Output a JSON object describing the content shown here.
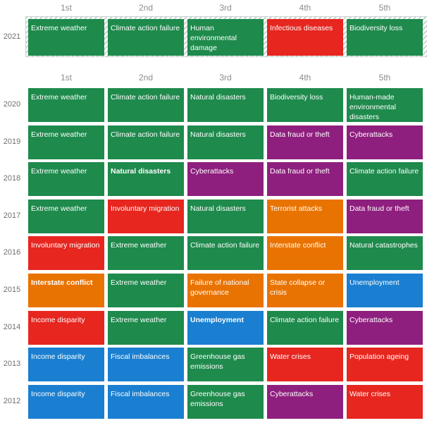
{
  "ranks": [
    "1st",
    "2nd",
    "3rd",
    "4th",
    "5th"
  ],
  "colors": {
    "green": "#1e8a4c",
    "red": "#e6261f",
    "purple": "#8e1f7e",
    "orange": "#e97300",
    "blue": "#1a7fd0"
  },
  "year2021": {
    "year": "2021",
    "cells": [
      {
        "label": "Extreme weather",
        "color": "green"
      },
      {
        "label": "Climate action failure",
        "color": "green"
      },
      {
        "label": "Human environmental damage",
        "color": "green"
      },
      {
        "label": "Infectious diseases",
        "color": "red"
      },
      {
        "label": "Biodiversity loss",
        "color": "green"
      }
    ]
  },
  "rows": [
    {
      "year": "2020",
      "cells": [
        {
          "label": "Extreme weather",
          "color": "green"
        },
        {
          "label": "Climate action failure",
          "color": "green"
        },
        {
          "label": "Natural disasters",
          "color": "green"
        },
        {
          "label": "Biodiversity loss",
          "color": "green"
        },
        {
          "label": "Human-made environmental disasters",
          "color": "green"
        }
      ]
    },
    {
      "year": "2019",
      "cells": [
        {
          "label": "Extreme weather",
          "color": "green"
        },
        {
          "label": "Climate action failure",
          "color": "green"
        },
        {
          "label": "Natural disasters",
          "color": "green"
        },
        {
          "label": "Data fraud or theft",
          "color": "purple"
        },
        {
          "label": "Cyberattacks",
          "color": "purple"
        }
      ]
    },
    {
      "year": "2018",
      "cells": [
        {
          "label": "Extreme weather",
          "color": "green"
        },
        {
          "label": "Natural disasters",
          "color": "green",
          "bold": true
        },
        {
          "label": "Cyberattacks",
          "color": "purple"
        },
        {
          "label": "Data fraud or theft",
          "color": "purple"
        },
        {
          "label": "Climate action failure",
          "color": "green"
        }
      ]
    },
    {
      "year": "2017",
      "cells": [
        {
          "label": "Extreme weather",
          "color": "green"
        },
        {
          "label": "Involuntary migration",
          "color": "red"
        },
        {
          "label": "Natural disasters",
          "color": "green"
        },
        {
          "label": "Terrorist attacks",
          "color": "orange"
        },
        {
          "label": "Data fraud or theft",
          "color": "purple"
        }
      ]
    },
    {
      "year": "2016",
      "cells": [
        {
          "label": "Involuntary migration",
          "color": "red"
        },
        {
          "label": "Extreme weather",
          "color": "green"
        },
        {
          "label": "Climate action failure",
          "color": "green"
        },
        {
          "label": "Interstate conflict",
          "color": "orange"
        },
        {
          "label": "Natural catastrophes",
          "color": "green"
        }
      ]
    },
    {
      "year": "2015",
      "cells": [
        {
          "label": "Interstate conflict",
          "color": "orange",
          "bold": true
        },
        {
          "label": "Extreme weather",
          "color": "green"
        },
        {
          "label": "Failure of national governance",
          "color": "orange"
        },
        {
          "label": "State collapse or crisis",
          "color": "orange"
        },
        {
          "label": "Unemployment",
          "color": "blue"
        }
      ]
    },
    {
      "year": "2014",
      "cells": [
        {
          "label": "Income disparity",
          "color": "red"
        },
        {
          "label": "Extreme weather",
          "color": "green"
        },
        {
          "label": "Unemployment",
          "color": "blue",
          "bold": true
        },
        {
          "label": "Climate action failure",
          "color": "green"
        },
        {
          "label": "Cyberattacks",
          "color": "purple"
        }
      ]
    },
    {
      "year": "2013",
      "cells": [
        {
          "label": "Income disparity",
          "color": "blue"
        },
        {
          "label": "Fiscal imbalances",
          "color": "blue"
        },
        {
          "label": "Greenhouse gas emissions",
          "color": "green"
        },
        {
          "label": "Water crises",
          "color": "red"
        },
        {
          "label": "Population ageing",
          "color": "red"
        }
      ]
    },
    {
      "year": "2012",
      "cells": [
        {
          "label": "Income disparity",
          "color": "blue"
        },
        {
          "label": "Fiscal imbalances",
          "color": "blue"
        },
        {
          "label": "Greenhouse gas emissions",
          "color": "green"
        },
        {
          "label": "Cyberattacks",
          "color": "purple"
        },
        {
          "label": "Water crises",
          "color": "red"
        }
      ]
    }
  ]
}
